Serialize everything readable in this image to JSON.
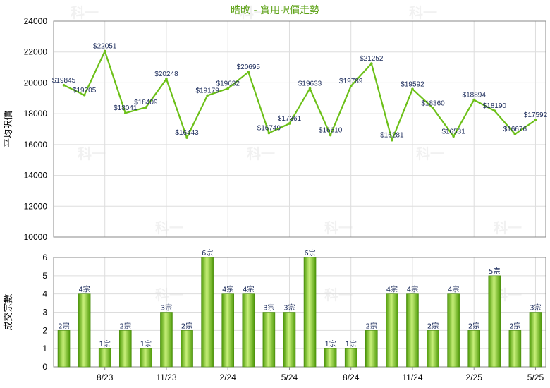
{
  "colors": {
    "title": "#5aa012",
    "line": "#6cc018",
    "bar_light": "#c8f07a",
    "bar_dark": "#4e9a08",
    "grid": "#dddddd",
    "axis": "#888888",
    "label": "#1a2a5a"
  },
  "watermark": "科一",
  "chart_data": [
    {
      "type": "line",
      "title": "晧畋 - 實用呎價走勢",
      "ylabel": "平均呎價",
      "ylim": [
        10000,
        24000
      ],
      "yticks": [
        10000,
        12000,
        14000,
        16000,
        18000,
        20000,
        22000,
        24000
      ],
      "grid": true,
      "values": [
        19845,
        19205,
        22051,
        18041,
        18409,
        20248,
        16443,
        19179,
        19632,
        20695,
        16749,
        17361,
        19633,
        16610,
        19789,
        21252,
        16281,
        19592,
        18360,
        16531,
        18894,
        18190,
        16676,
        17592
      ],
      "point_labels": [
        "$19845",
        "$19205",
        "$22051",
        "$18041",
        "$18409",
        "$20248",
        "$16443",
        "$19179",
        "$19632",
        "$20695",
        "$16749",
        "$17361",
        "$19633",
        "$16610",
        "$19789",
        "$21252",
        "$16281",
        "$19592",
        "$18360",
        "$16531",
        "$18894",
        "$18190",
        "$16676",
        "$17592"
      ]
    },
    {
      "type": "bar",
      "ylabel": "成交宗數",
      "ylim": [
        0,
        6
      ],
      "yticks": [
        0,
        1,
        2,
        3,
        4,
        5,
        6
      ],
      "grid": true,
      "values": [
        2,
        4,
        1,
        2,
        1,
        3,
        2,
        6,
        4,
        4,
        3,
        3,
        6,
        1,
        1,
        2,
        4,
        4,
        2,
        4,
        2,
        5,
        2,
        3
      ],
      "bar_labels": [
        "2宗",
        "4宗",
        "1宗",
        "2宗",
        "1宗",
        "3宗",
        "2宗",
        "6宗",
        "4宗",
        "4宗",
        "3宗",
        "3宗",
        "6宗",
        "1宗",
        "1宗",
        "2宗",
        "4宗",
        "4宗",
        "2宗",
        "4宗",
        "2宗",
        "5宗",
        "2宗",
        "3宗"
      ],
      "x_tick_labels": [
        {
          "index": 2,
          "label": "8/23"
        },
        {
          "index": 5,
          "label": "11/23"
        },
        {
          "index": 8,
          "label": "2/24"
        },
        {
          "index": 11,
          "label": "5/24"
        },
        {
          "index": 14,
          "label": "8/24"
        },
        {
          "index": 17,
          "label": "11/24"
        },
        {
          "index": 20,
          "label": "2/25"
        },
        {
          "index": 23,
          "label": "5/25"
        }
      ]
    }
  ]
}
